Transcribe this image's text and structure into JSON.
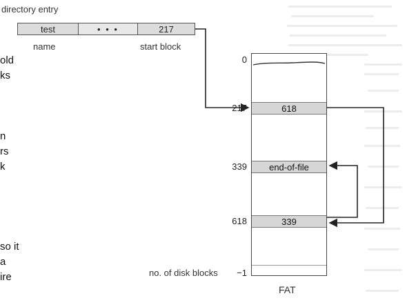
{
  "labels": {
    "directory_entry": "directory entry",
    "name": "name",
    "start_block": "start block",
    "fat": "FAT",
    "disk_blocks": "no. of disk blocks"
  },
  "directory": {
    "name": "test",
    "dots": "• • •",
    "start": "217"
  },
  "fat": {
    "index_zero": "0",
    "rows": [
      {
        "index": "217",
        "value": "618"
      },
      {
        "index": "339",
        "value": "end-of-file"
      },
      {
        "index": "618",
        "value": "339"
      }
    ],
    "last_value": "−1"
  },
  "left_text_fragments": [
    "old",
    "ks",
    "n",
    "rs",
    "k",
    "so it",
    "a",
    "ire"
  ]
}
